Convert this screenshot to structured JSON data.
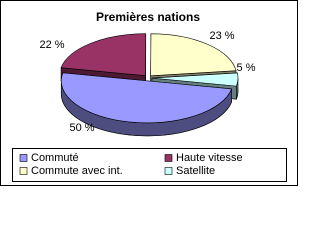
{
  "chart_data": {
    "type": "pie",
    "title": "Premières nations",
    "categories": [
      "Commuté",
      "Haute vitesse",
      "Commute avec int.",
      "Satellite"
    ],
    "values": [
      50,
      22,
      23,
      5
    ],
    "value_labels": [
      "50 %",
      "22 %",
      "23 %",
      "5 %"
    ],
    "colors": [
      "#9999ff",
      "#993366",
      "#ffffcc",
      "#ccffff"
    ],
    "legend": "bottom"
  }
}
